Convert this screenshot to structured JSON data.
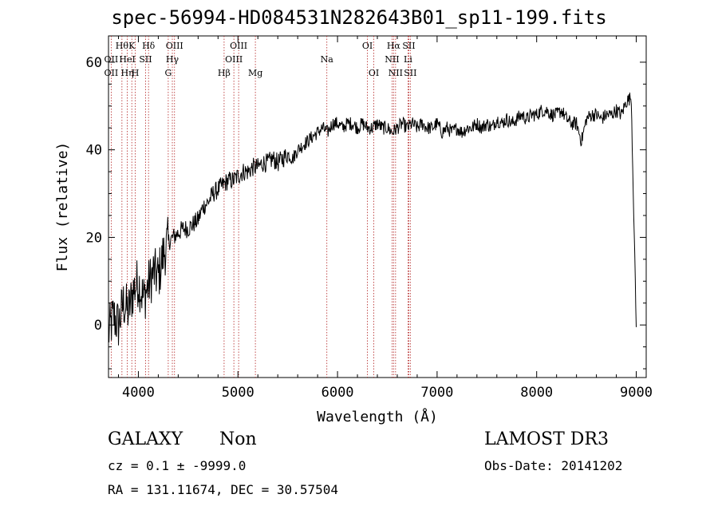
{
  "title": "spec-56994-HD084531N282643B01_sp11-199.fits",
  "footer": {
    "class_label": "GALAXY",
    "subclass": "Non",
    "survey": "LAMOST DR3",
    "cz": "cz = 0.1 ± -9999.0",
    "obs_date": "Obs-Date: 20141202",
    "coords": "RA = 131.11674, DEC =  30.57504"
  },
  "colors": {
    "spectrum": "#000000",
    "line_marker": "#b22222"
  },
  "chart_data": {
    "type": "line",
    "title": "spec-56994-HD084531N282643B01_sp11-199.fits",
    "xlabel": "Wavelength (Å)",
    "ylabel": "Flux (relative)",
    "xlim": [
      3700,
      9100
    ],
    "ylim": [
      -12,
      66
    ],
    "xticks": [
      4000,
      5000,
      6000,
      7000,
      8000,
      9000
    ],
    "yticks": [
      0,
      20,
      40,
      60
    ],
    "grid": false,
    "series": [
      {
        "x": [
          3700,
          3750,
          3800,
          3850,
          3900,
          3950,
          4000,
          4050,
          4100,
          4150,
          4200,
          4250,
          4300,
          4350,
          4400,
          4450,
          4500,
          4550,
          4600,
          4650,
          4700,
          4750,
          4800,
          4850,
          4900,
          4950,
          5000,
          5050,
          5100,
          5150,
          5200,
          5250,
          5300,
          5350,
          5400,
          5450,
          5500,
          5550,
          5600,
          5650,
          5700,
          5750,
          5800,
          5850,
          5900,
          5950,
          6000,
          6050,
          6100,
          6150,
          6200,
          6250,
          6300,
          6350,
          6400,
          6450,
          6500,
          6550,
          6600,
          6650,
          6700,
          6750,
          6800,
          6850,
          6900,
          6950,
          7000,
          7050,
          7100,
          7150,
          7200,
          7250,
          7300,
          7350,
          7400,
          7450,
          7500,
          7550,
          7600,
          7650,
          7700,
          7750,
          7800,
          7850,
          7900,
          7950,
          8000,
          8050,
          8100,
          8150,
          8200,
          8250,
          8300,
          8350,
          8400,
          8450,
          8500,
          8550,
          8600,
          8650,
          8700,
          8750,
          8800,
          8850,
          8900,
          8950,
          9000
        ],
        "y": [
          -2,
          2,
          0,
          5,
          3,
          8,
          10,
          6,
          9,
          12,
          11,
          16,
          19,
          20,
          21,
          22,
          22,
          23,
          24,
          27,
          28,
          30,
          31,
          32,
          33,
          33,
          34,
          35,
          35,
          36,
          36,
          37,
          37,
          38,
          37,
          38,
          39,
          38,
          40,
          41,
          42,
          43,
          44,
          45,
          44,
          46,
          46,
          45,
          46,
          46,
          45,
          46,
          45,
          45,
          46,
          45,
          45,
          44,
          45,
          46,
          45,
          46,
          45,
          46,
          45,
          45,
          46,
          44,
          45,
          44,
          45,
          44,
          45,
          45,
          46,
          45,
          46,
          45,
          47,
          46,
          47,
          46,
          47,
          48,
          47,
          48,
          48,
          49,
          49,
          48,
          48,
          49,
          47,
          46,
          46,
          42,
          47,
          48,
          48,
          47,
          48,
          48,
          49,
          48,
          51,
          52,
          -0.5
        ]
      }
    ],
    "line_markers": [
      {
        "wavelength": 3727,
        "label": "OII",
        "row": 2
      },
      {
        "wavelength": 3727,
        "label": "OII",
        "row": 3
      },
      {
        "wavelength": 3835,
        "label": "Hθ",
        "row": 1
      },
      {
        "wavelength": 3889,
        "label": "HeI",
        "row": 2
      },
      {
        "wavelength": 3889,
        "label": "Hη",
        "row": 3
      },
      {
        "wavelength": 3934,
        "label": "K",
        "row": 1
      },
      {
        "wavelength": 3969,
        "label": "H",
        "row": 3
      },
      {
        "wavelength": 4072,
        "label": "SII",
        "row": 2
      },
      {
        "wavelength": 4102,
        "label": "Hδ",
        "row": 1
      },
      {
        "wavelength": 4300,
        "label": "G",
        "row": 3
      },
      {
        "wavelength": 4341,
        "label": "Hγ",
        "row": 2
      },
      {
        "wavelength": 4363,
        "label": "OIII",
        "row": 1
      },
      {
        "wavelength": 4861,
        "label": "Hβ",
        "row": 3
      },
      {
        "wavelength": 4959,
        "label": "OIII",
        "row": 2
      },
      {
        "wavelength": 5007,
        "label": "OIII",
        "row": 1
      },
      {
        "wavelength": 5175,
        "label": "Mg",
        "row": 3
      },
      {
        "wavelength": 5893,
        "label": "Na",
        "row": 2
      },
      {
        "wavelength": 6300,
        "label": "OI",
        "row": 1
      },
      {
        "wavelength": 6364,
        "label": "OI",
        "row": 3
      },
      {
        "wavelength": 6548,
        "label": "NII",
        "row": 2
      },
      {
        "wavelength": 6563,
        "label": "Hα",
        "row": 1
      },
      {
        "wavelength": 6583,
        "label": "NII",
        "row": 3
      },
      {
        "wavelength": 6708,
        "label": "Li",
        "row": 2
      },
      {
        "wavelength": 6716,
        "label": "SII",
        "row": 1
      },
      {
        "wavelength": 6731,
        "label": "SII",
        "row": 3
      }
    ]
  }
}
